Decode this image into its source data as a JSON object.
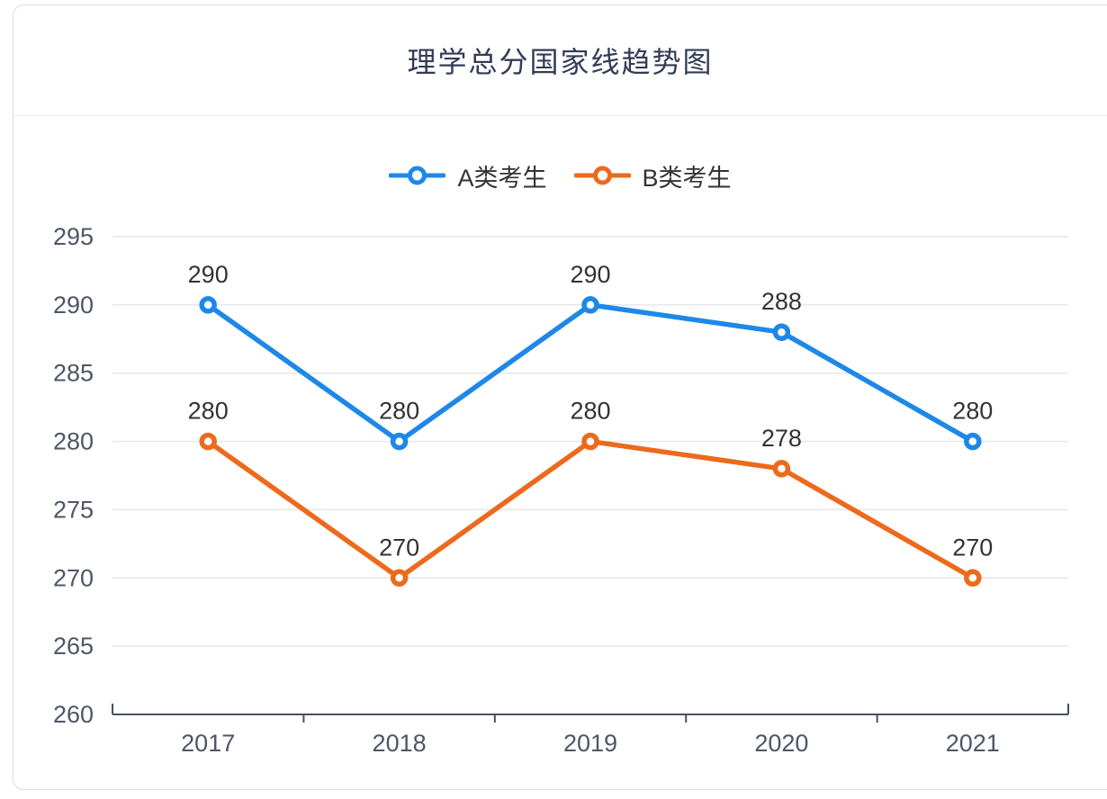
{
  "chart_data": {
    "type": "line",
    "title": "理学总分国家线趋势图",
    "categories": [
      "2017",
      "2018",
      "2019",
      "2020",
      "2021"
    ],
    "series": [
      {
        "name": "A类考生",
        "color": "#1E88E8",
        "values": [
          290,
          280,
          290,
          288,
          280
        ]
      },
      {
        "name": "B类考生",
        "color": "#EC6A1D",
        "values": [
          280,
          270,
          280,
          278,
          270
        ]
      }
    ],
    "ylim": [
      260,
      295
    ],
    "yticks": [
      260,
      265,
      270,
      275,
      280,
      285,
      290,
      295
    ],
    "grid": true,
    "legend_position": "top",
    "data_labels_shown": true,
    "marker": "hollow-circle"
  },
  "style": {
    "title_color": "#333C55",
    "axis_color": "#475062",
    "grid_color": "#E4E7EB",
    "tick_label_color": "#4D5666",
    "data_label_color": "#333333",
    "card_border": "#DCDCDC",
    "separator": "#EBEBEB",
    "background": "#FFFFFF"
  }
}
